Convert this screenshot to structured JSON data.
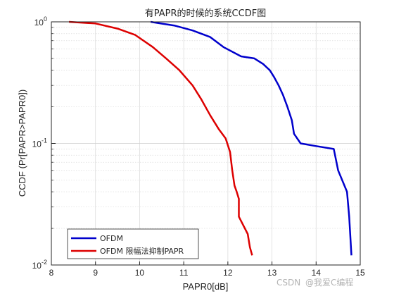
{
  "chart_data": {
    "type": "line",
    "title": "有PAPR的时候的系统CCDF图",
    "xlabel": "PAPR0[dB]",
    "ylabel": "CCDF (Pr[PAPR>PAPR0])",
    "xlim": [
      8,
      15
    ],
    "ylim": [
      0.01,
      1
    ],
    "yscale": "log",
    "grid": true,
    "legend_position": "bottom-left",
    "x_ticks": [
      "8",
      "9",
      "10",
      "11",
      "12",
      "13",
      "14",
      "15"
    ],
    "y_ticks": [
      "10^0",
      "10^-1",
      "10^-2"
    ],
    "series": [
      {
        "name": "OFDM",
        "color": "#0000cc",
        "x": [
          10.25,
          10.4,
          10.8,
          11.2,
          11.6,
          11.9,
          12.3,
          12.6,
          12.8,
          12.95,
          13.05,
          13.15,
          13.25,
          13.35,
          13.45,
          13.5,
          13.65,
          14.0,
          14.4,
          14.5,
          14.7,
          14.75,
          14.8
        ],
        "y": [
          1.0,
          0.98,
          0.93,
          0.85,
          0.75,
          0.62,
          0.52,
          0.5,
          0.45,
          0.4,
          0.35,
          0.3,
          0.25,
          0.2,
          0.155,
          0.12,
          0.1,
          0.095,
          0.09,
          0.06,
          0.04,
          0.025,
          0.012
        ]
      },
      {
        "name": "OFDM 限幅法抑制PAPR",
        "color": "#dd0000",
        "x": [
          8.4,
          9.0,
          9.5,
          9.9,
          10.3,
          10.6,
          10.9,
          11.2,
          11.4,
          11.6,
          11.8,
          11.95,
          12.05,
          12.1,
          12.15,
          12.2,
          12.25,
          12.25,
          12.45,
          12.5,
          12.55
        ],
        "y": [
          1.0,
          0.97,
          0.88,
          0.78,
          0.62,
          0.5,
          0.4,
          0.3,
          0.23,
          0.17,
          0.13,
          0.11,
          0.085,
          0.06,
          0.045,
          0.04,
          0.035,
          0.025,
          0.018,
          0.014,
          0.012
        ]
      }
    ]
  },
  "watermark": {
    "csdn": "CSDN",
    "author": "@我爱C编程"
  }
}
